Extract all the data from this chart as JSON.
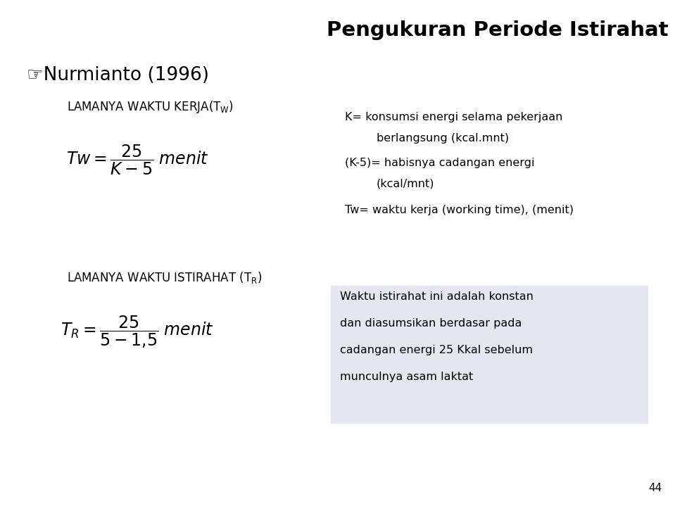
{
  "title": "Pengukuran Periode Istirahat",
  "title_fontsize": 21,
  "title_fontweight": "bold",
  "bg_color": "#ffffff",
  "text_color": "#000000",
  "bullet_nurmianto": "☞Nurmianto (1996)",
  "note1_line1": "K= konsumsi energi selama pekerjaan",
  "note1_line2": "berlangsung (kcal.mnt)",
  "note1_line3": "(K-5)= habisnya cadangan energi",
  "note1_line4": "(kcal/mnt)",
  "note1_line5": "Tw= waktu kerja (working time), (menit)",
  "note2_box_color": "#e6e6f0",
  "note2_line1": "Waktu istirahat ini adalah konstan",
  "note2_line2": "dan diasumsikan berdasar pada",
  "note2_line3": "cadangan energi 25 Kkal sebelum",
  "note2_line4": "munculnya asam laktat",
  "page_number": "44",
  "label1_fontsize": 12,
  "note_fontsize": 11.5,
  "formula_fontsize": 17,
  "nurmianto_fontsize": 19
}
